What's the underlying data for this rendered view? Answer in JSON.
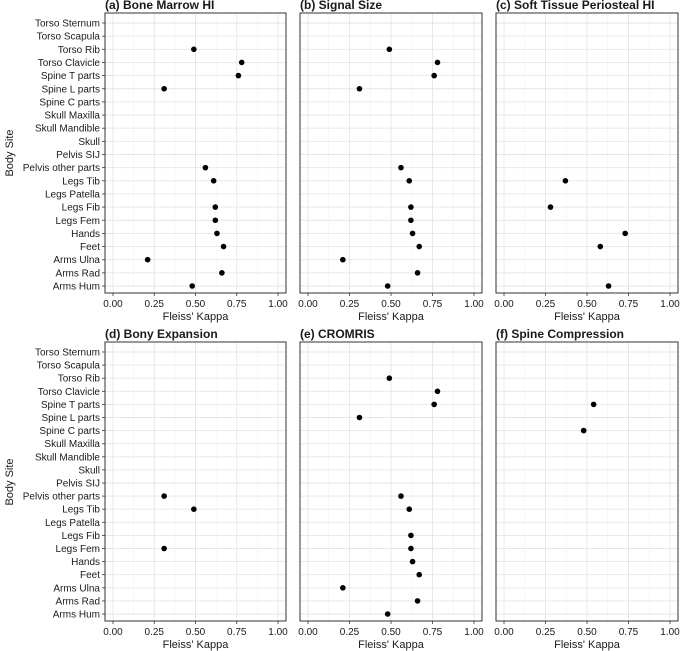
{
  "figure": {
    "y_axis_title": "Body Site",
    "x_axis_title": "Fleiss' Kappa"
  },
  "chart_data": [
    {
      "type": "scatter",
      "title": "(a) Bone Marrow HI",
      "xlabel": "Fleiss' Kappa",
      "ylabel": "Body Site",
      "xlim": [
        0,
        1
      ],
      "xticks": [
        "0.00",
        "0.25",
        "0.50",
        "0.75",
        "1.00"
      ],
      "categories": [
        "Torso Sternum",
        "Torso Scapula",
        "Torso Rib",
        "Torso Clavicle",
        "Spine T parts",
        "Spine L parts",
        "Spine C parts",
        "Skull Maxilla",
        "Skull Mandible",
        "Skull",
        "Pelvis SIJ",
        "Pelvis other parts",
        "Legs Tib",
        "Legs Patella",
        "Legs Fib",
        "Legs Fem",
        "Hands",
        "Feet",
        "Arms Ulna",
        "Arms Rad",
        "Arms Hum"
      ],
      "values": [
        null,
        null,
        0.49,
        0.78,
        0.76,
        0.31,
        null,
        null,
        null,
        null,
        null,
        0.56,
        0.61,
        null,
        0.62,
        0.62,
        0.63,
        0.67,
        0.21,
        0.66,
        0.48
      ]
    },
    {
      "type": "scatter",
      "title": "(b) Signal Size",
      "xlabel": "Fleiss' Kappa",
      "ylabel": "Body Site",
      "xlim": [
        0,
        1
      ],
      "xticks": [
        "0.00",
        "0.25",
        "0.50",
        "0.75",
        "1.00"
      ],
      "categories": [
        "Torso Sternum",
        "Torso Scapula",
        "Torso Rib",
        "Torso Clavicle",
        "Spine T parts",
        "Spine L parts",
        "Spine C parts",
        "Skull Maxilla",
        "Skull Mandible",
        "Skull",
        "Pelvis SIJ",
        "Pelvis other parts",
        "Legs Tib",
        "Legs Patella",
        "Legs Fib",
        "Legs Fem",
        "Hands",
        "Feet",
        "Arms Ulna",
        "Arms Rad",
        "Arms Hum"
      ],
      "values": [
        null,
        null,
        0.49,
        0.78,
        0.76,
        0.31,
        null,
        null,
        null,
        null,
        null,
        0.56,
        0.61,
        null,
        0.62,
        0.62,
        0.63,
        0.67,
        0.21,
        0.66,
        0.48
      ]
    },
    {
      "type": "scatter",
      "title": "(c) Soft Tissue Periosteal HI",
      "xlabel": "Fleiss' Kappa",
      "ylabel": "Body Site",
      "xlim": [
        0,
        1
      ],
      "xticks": [
        "0.00",
        "0.25",
        "0.50",
        "0.75",
        "1.00"
      ],
      "categories": [
        "Torso Sternum",
        "Torso Scapula",
        "Torso Rib",
        "Torso Clavicle",
        "Spine T parts",
        "Spine L parts",
        "Spine C parts",
        "Skull Maxilla",
        "Skull Mandible",
        "Skull",
        "Pelvis SIJ",
        "Pelvis other parts",
        "Legs Tib",
        "Legs Patella",
        "Legs Fib",
        "Legs Fem",
        "Hands",
        "Feet",
        "Arms Ulna",
        "Arms Rad",
        "Arms Hum"
      ],
      "values": [
        null,
        null,
        null,
        null,
        null,
        null,
        null,
        null,
        null,
        null,
        null,
        null,
        0.37,
        null,
        0.28,
        null,
        0.73,
        0.58,
        null,
        null,
        0.63
      ]
    },
    {
      "type": "scatter",
      "title": "(d) Bony Expansion",
      "xlabel": "Fleiss' Kappa",
      "ylabel": "Body Site",
      "xlim": [
        0,
        1
      ],
      "xticks": [
        "0.00",
        "0.25",
        "0.50",
        "0.75",
        "1.00"
      ],
      "categories": [
        "Torso Sternum",
        "Torso Scapula",
        "Torso Rib",
        "Torso Clavicle",
        "Spine T parts",
        "Spine L parts",
        "Spine C parts",
        "Skull Maxilla",
        "Skull Mandible",
        "Skull",
        "Pelvis SIJ",
        "Pelvis other parts",
        "Legs Tib",
        "Legs Patella",
        "Legs Fib",
        "Legs Fem",
        "Hands",
        "Feet",
        "Arms Ulna",
        "Arms Rad",
        "Arms Hum"
      ],
      "values": [
        null,
        null,
        null,
        null,
        null,
        null,
        null,
        null,
        null,
        null,
        null,
        0.31,
        0.49,
        null,
        null,
        0.31,
        null,
        null,
        null,
        null,
        null
      ]
    },
    {
      "type": "scatter",
      "title": "(e) CROMRIS",
      "xlabel": "Fleiss' Kappa",
      "ylabel": "Body Site",
      "xlim": [
        0,
        1
      ],
      "xticks": [
        "0.00",
        "0.25",
        "0.50",
        "0.75",
        "1.00"
      ],
      "categories": [
        "Torso Sternum",
        "Torso Scapula",
        "Torso Rib",
        "Torso Clavicle",
        "Spine T parts",
        "Spine L parts",
        "Spine C parts",
        "Skull Maxilla",
        "Skull Mandible",
        "Skull",
        "Pelvis SIJ",
        "Pelvis other parts",
        "Legs Tib",
        "Legs Patella",
        "Legs Fib",
        "Legs Fem",
        "Hands",
        "Feet",
        "Arms Ulna",
        "Arms Rad",
        "Arms Hum"
      ],
      "values": [
        null,
        null,
        0.49,
        0.78,
        0.76,
        0.31,
        null,
        null,
        null,
        null,
        null,
        0.56,
        0.61,
        null,
        0.62,
        0.62,
        0.63,
        0.67,
        0.21,
        0.66,
        0.48
      ]
    },
    {
      "type": "scatter",
      "title": "(f) Spine Compression",
      "xlabel": "Fleiss' Kappa",
      "ylabel": "Body Site",
      "xlim": [
        0,
        1
      ],
      "xticks": [
        "0.00",
        "0.25",
        "0.50",
        "0.75",
        "1.00"
      ],
      "categories": [
        "Torso Sternum",
        "Torso Scapula",
        "Torso Rib",
        "Torso Clavicle",
        "Spine T parts",
        "Spine L parts",
        "Spine C parts",
        "Skull Maxilla",
        "Skull Mandible",
        "Skull",
        "Pelvis SIJ",
        "Pelvis other parts",
        "Legs Tib",
        "Legs Patella",
        "Legs Fib",
        "Legs Fem",
        "Hands",
        "Feet",
        "Arms Ulna",
        "Arms Rad",
        "Arms Hum"
      ],
      "values": [
        null,
        null,
        null,
        null,
        0.54,
        null,
        0.48,
        null,
        null,
        null,
        null,
        null,
        null,
        null,
        null,
        null,
        null,
        null,
        null,
        null,
        null
      ]
    }
  ]
}
